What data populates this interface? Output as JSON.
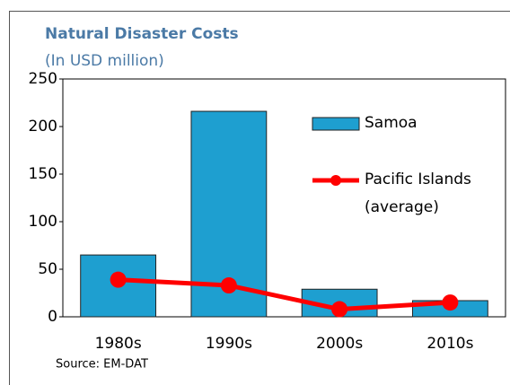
{
  "chart_data": {
    "type": "bar",
    "title": "Natural Disaster Costs",
    "subtitle": "(In USD million)",
    "source": "Source: EM-DAT",
    "categories": [
      "1980s",
      "1990s",
      "2000s",
      "2010s"
    ],
    "series": [
      {
        "name": "Samoa",
        "type": "bar",
        "color": "#1e9fd0",
        "values": [
          65,
          216,
          29,
          17
        ]
      },
      {
        "name": "Pacific Islands (average)",
        "type": "line",
        "color": "#ff0000",
        "values": [
          39,
          33,
          8,
          15
        ]
      }
    ],
    "ylim": [
      0,
      250
    ],
    "yticks": [
      0,
      50,
      100,
      150,
      200,
      250
    ],
    "grid": false
  }
}
